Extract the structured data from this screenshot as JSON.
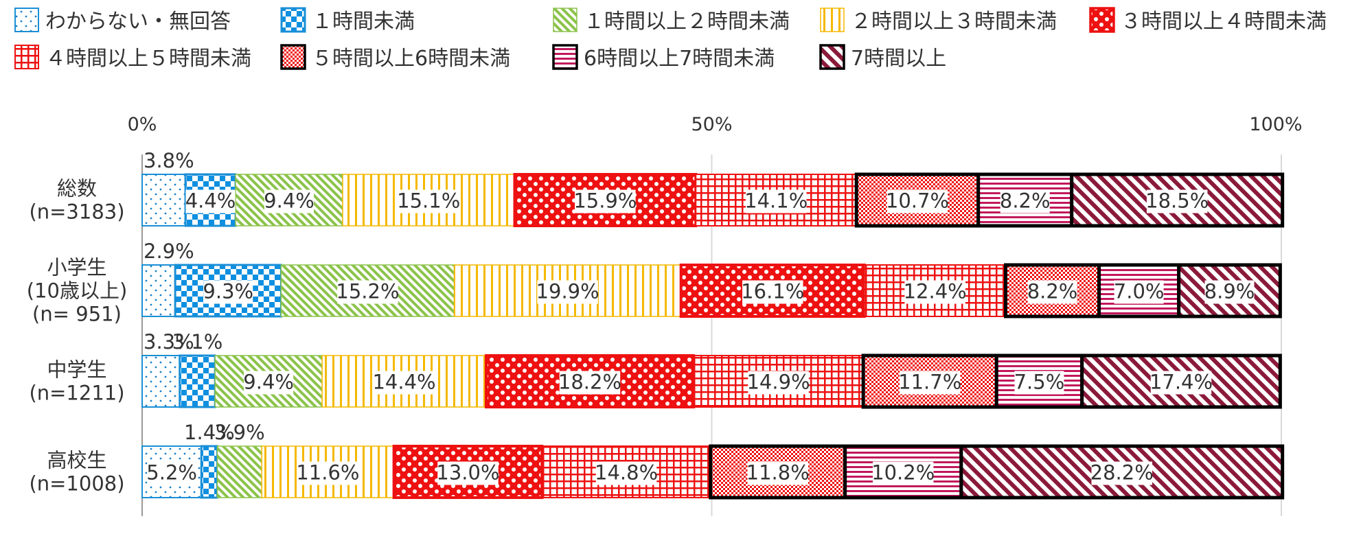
{
  "chart_data": {
    "type": "bar",
    "orientation": "horizontal",
    "stacked": "percent",
    "xlim": [
      0,
      100
    ],
    "x_ticks": [
      "0%",
      "50%",
      "100%"
    ],
    "legend_position": "top",
    "categories": [
      [
        "総数",
        "(n=3183)"
      ],
      [
        "小学生",
        "(10歳以上)",
        "(n= 951)"
      ],
      [
        "中学生",
        "(n=1211)"
      ],
      [
        "高校生",
        "(n=1008)"
      ]
    ],
    "series": [
      {
        "name": "わからない・無回答",
        "values": [
          3.8,
          2.9,
          3.3,
          5.2
        ],
        "labels": [
          "3.8%",
          "2.9%",
          "3.3%",
          "5.2%"
        ],
        "color": "#5b9bd5",
        "pattern": "dots"
      },
      {
        "name": "１時間未満",
        "values": [
          4.4,
          9.3,
          3.1,
          1.4
        ],
        "labels": [
          "4.4%",
          "9.3%",
          "3.1%",
          "1.4%"
        ],
        "color": "#1a8fd6",
        "pattern": "checker"
      },
      {
        "name": "１時間以上２時間未満",
        "values": [
          9.4,
          15.2,
          9.4,
          3.9
        ],
        "labels": [
          "9.4%",
          "15.2%",
          "9.4%",
          "3.9%"
        ],
        "color": "#8bc34a",
        "pattern": "diagonal"
      },
      {
        "name": "２時間以上３時間未満",
        "values": [
          15.1,
          19.9,
          14.4,
          11.6
        ],
        "labels": [
          "15.1%",
          "19.9%",
          "14.4%",
          "11.6%"
        ],
        "color": "#f5b800",
        "pattern": "vertical"
      },
      {
        "name": "３時間以上４時間未満",
        "values": [
          15.9,
          16.1,
          18.2,
          13.0
        ],
        "labels": [
          "15.9%",
          "16.1%",
          "18.2%",
          "13.0%"
        ],
        "color": "#ee1111",
        "pattern": "bigcheck"
      },
      {
        "name": "４時間以上５時間未満",
        "values": [
          14.1,
          12.4,
          14.9,
          14.8
        ],
        "labels": [
          "14.1%",
          "12.4%",
          "14.9%",
          "14.8%"
        ],
        "color": "#ee1111",
        "pattern": "grid"
      },
      {
        "name": "５時間以上6時間未満",
        "values": [
          10.7,
          8.2,
          11.7,
          11.8
        ],
        "labels": [
          "10.7%",
          "8.2%",
          "11.7%",
          "11.8%"
        ],
        "color": "#ee1111",
        "pattern": "smallcheck"
      },
      {
        "name": "6時間以上7時間未満",
        "values": [
          8.2,
          7.0,
          7.5,
          10.2
        ],
        "labels": [
          "8.2%",
          "7.0%",
          "7.5%",
          "10.2%"
        ],
        "color": "#c2185b",
        "pattern": "horizontal"
      },
      {
        "name": "7時間以上",
        "values": [
          18.5,
          8.9,
          17.4,
          28.2
        ],
        "labels": [
          "18.5%",
          "8.9%",
          "17.4%",
          "28.2%"
        ],
        "color": "#8b1a3a",
        "pattern": "wide-diagonal"
      }
    ]
  }
}
